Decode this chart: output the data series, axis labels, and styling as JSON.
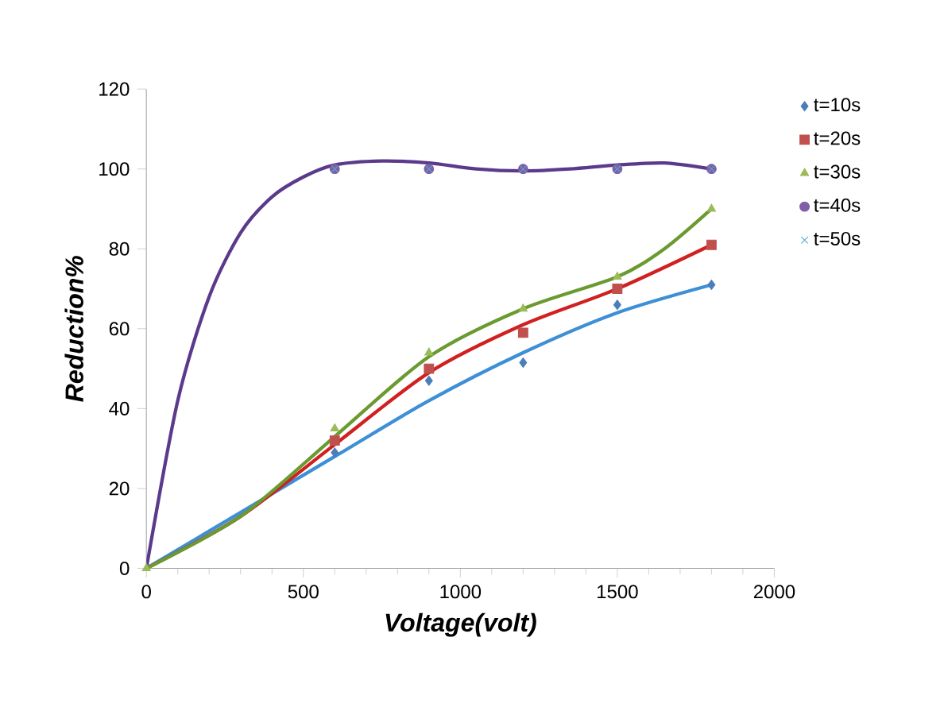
{
  "chart_data": {
    "type": "scatter",
    "xlabel": "Voltage(volt)",
    "ylabel": "Reduction%",
    "xlim": [
      0,
      2000
    ],
    "ylim": [
      0,
      120
    ],
    "xticks": [
      0,
      500,
      1000,
      1500,
      2000
    ],
    "yticks": [
      0,
      20,
      40,
      60,
      80,
      100,
      120
    ],
    "grid": false,
    "legend": "top right",
    "x": [
      0,
      600,
      900,
      1200,
      1500,
      1800
    ],
    "series": [
      {
        "name": "t=10s",
        "color": "#4a7ebb",
        "marker": "diamond",
        "values": [
          null,
          29,
          47,
          51.5,
          66,
          71
        ]
      },
      {
        "name": "t=20s",
        "color": "#c0504d",
        "marker": "square",
        "values": [
          null,
          32,
          50,
          59,
          70,
          81
        ]
      },
      {
        "name": "t=30s",
        "color": "#9bbb59",
        "marker": "triangle",
        "values": [
          0,
          35,
          54,
          65,
          73,
          90
        ]
      },
      {
        "name": "t=40s",
        "color": "#7f5fa8",
        "marker": "circle",
        "values": [
          null,
          100,
          100,
          100,
          100,
          100
        ]
      },
      {
        "name": "t=50s",
        "color": "#4bacc6",
        "marker": "cross",
        "values": [
          null,
          100,
          100,
          100,
          100,
          100
        ]
      },
      {
        "type": "line",
        "color": "#3d8fd6",
        "marker": "none",
        "x": [
          0,
          300,
          600,
          900,
          1200,
          1500,
          1800
        ],
        "values": [
          0,
          14,
          28,
          42,
          54,
          64,
          71
        ]
      },
      {
        "type": "line",
        "color": "#d02020",
        "marker": "none",
        "x": [
          0,
          300,
          600,
          900,
          1200,
          1500,
          1800
        ],
        "values": [
          0,
          13,
          31,
          49,
          61,
          70,
          81
        ]
      },
      {
        "type": "line",
        "color": "#6a9a30",
        "marker": "none",
        "x": [
          0,
          300,
          600,
          900,
          1200,
          1500,
          1650,
          1800
        ],
        "values": [
          0,
          13,
          33,
          53,
          65,
          73,
          80,
          90
        ]
      },
      {
        "type": "line",
        "color": "#5b3a8c",
        "marker": "none",
        "x": [
          0,
          100,
          200,
          300,
          400,
          500,
          600,
          750,
          900,
          1050,
          1200,
          1350,
          1500,
          1650,
          1800
        ],
        "values": [
          0,
          42,
          68,
          84,
          93,
          98,
          101,
          102,
          101.5,
          100,
          99.5,
          100,
          101,
          101.5,
          100
        ]
      }
    ]
  }
}
